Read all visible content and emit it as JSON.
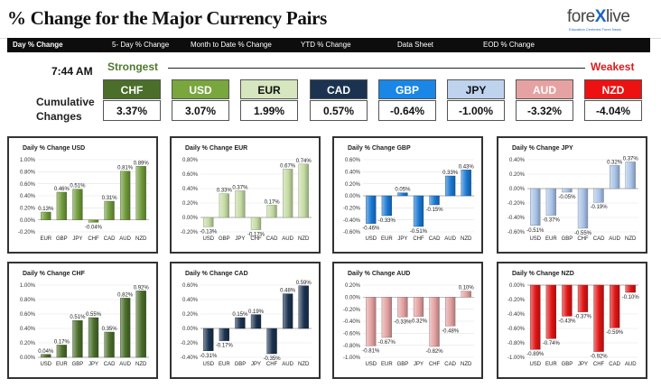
{
  "header": {
    "title": "% Change for the Major Currency Pairs",
    "logo_text_a": "fore",
    "logo_text_x": "X",
    "logo_text_b": "live",
    "logo_tagline": "Education Centered Forex News"
  },
  "tabs": [
    {
      "label": "Day % Change",
      "active": true
    },
    {
      "label": "5- Day % Change",
      "active": false
    },
    {
      "label": "Month to Date % Change",
      "active": false
    },
    {
      "label": "YTD % Change",
      "active": false
    },
    {
      "label": "Data Sheet",
      "active": false
    },
    {
      "label": "EOD % Change",
      "active": false
    }
  ],
  "ranking": {
    "time": "7:44 AM",
    "strongest_label": "Strongest",
    "weakest_label": "Weakest",
    "cumulative_line1": "Cumulative",
    "cumulative_line2": "Changes",
    "currencies": [
      {
        "code": "CHF",
        "value": "3.37%",
        "bg": "#4b6e2a",
        "fg": "#ffffff"
      },
      {
        "code": "USD",
        "value": "3.07%",
        "bg": "#79a63d",
        "fg": "#ffffff"
      },
      {
        "code": "EUR",
        "value": "1.99%",
        "bg": "#d6e6bf",
        "fg": "#111111"
      },
      {
        "code": "CAD",
        "value": "0.57%",
        "bg": "#1b3350",
        "fg": "#ffffff"
      },
      {
        "code": "GBP",
        "value": "-0.64%",
        "bg": "#1a86e6",
        "fg": "#ffffff"
      },
      {
        "code": "JPY",
        "value": "-1.00%",
        "bg": "#bfd2ee",
        "fg": "#111111"
      },
      {
        "code": "AUD",
        "value": "-3.32%",
        "bg": "#e6a2a2",
        "fg": "#ffffff"
      },
      {
        "code": "NZD",
        "value": "-4.04%",
        "bg": "#ee1111",
        "fg": "#ffffff"
      }
    ]
  },
  "chart_data": [
    {
      "type": "bar",
      "title": "Daily % Change USD",
      "color": "#6f9a3a",
      "categories": [
        "EUR",
        "GBP",
        "JPY",
        "CHF",
        "CAD",
        "AUD",
        "NZD"
      ],
      "values": [
        0.13,
        0.46,
        0.51,
        -0.04,
        0.31,
        0.81,
        0.89
      ],
      "labels": [
        "0.13%",
        "0.46%",
        "0.51%",
        "-0.04%",
        "0.31%",
        "0.81%",
        "0.89%"
      ],
      "ylim": [
        -0.2,
        1.0
      ],
      "yticks": [
        "-0.20%",
        "0.00%",
        "0.20%",
        "0.40%",
        "0.60%",
        "0.80%",
        "1.00%"
      ]
    },
    {
      "type": "bar",
      "title": "Daily % Change EUR",
      "color": "#c4dba3",
      "categories": [
        "USD",
        "GBP",
        "JPY",
        "CHF",
        "CAD",
        "AUD",
        "NZD"
      ],
      "values": [
        -0.13,
        0.33,
        0.37,
        -0.17,
        0.17,
        0.67,
        0.74
      ],
      "labels": [
        "-0.13%",
        "0.33%",
        "0.37%",
        "-0.17%",
        "0.17%",
        "0.67%",
        "0.74%"
      ],
      "ylim": [
        -0.2,
        0.8
      ],
      "yticks": [
        "-0.20%",
        "0.00%",
        "0.20%",
        "0.40%",
        "0.60%",
        "0.80%"
      ]
    },
    {
      "type": "bar",
      "title": "Daily % Change GBP",
      "color": "#1a78d2",
      "categories": [
        "USD",
        "EUR",
        "JPY",
        "CHF",
        "CAD",
        "AUD",
        "NZD"
      ],
      "values": [
        -0.46,
        -0.33,
        0.05,
        -0.51,
        -0.15,
        0.33,
        0.43
      ],
      "labels": [
        "-0.46%",
        "-0.33%",
        "0.05%",
        "-0.51%",
        "-0.15%",
        "0.33%",
        "0.43%"
      ],
      "ylim": [
        -0.6,
        0.6
      ],
      "yticks": [
        "-0.60%",
        "-0.40%",
        "-0.20%",
        "0.00%",
        "0.20%",
        "0.40%",
        "0.60%"
      ]
    },
    {
      "type": "bar",
      "title": "Daily % Change JPY",
      "color": "#a9c3e8",
      "categories": [
        "USD",
        "EUR",
        "GBP",
        "CHF",
        "CAD",
        "AUD",
        "NZD"
      ],
      "values": [
        -0.51,
        -0.37,
        -0.05,
        -0.55,
        -0.19,
        0.32,
        0.37
      ],
      "labels": [
        "-0.51%",
        "-0.37%",
        "-0.05%",
        "-0.55%",
        "-0.19%",
        "0.32%",
        "0.37%"
      ],
      "ylim": [
        -0.6,
        0.4
      ],
      "yticks": [
        "-0.60%",
        "-0.40%",
        "-0.20%",
        "0.00%",
        "0.20%",
        "0.40%"
      ]
    },
    {
      "type": "bar",
      "title": "Daily % Change CHF",
      "color": "#4a6e2a",
      "categories": [
        "USD",
        "EUR",
        "GBP",
        "JPY",
        "CAD",
        "AUD",
        "NZD"
      ],
      "values": [
        0.04,
        0.17,
        0.51,
        0.55,
        0.35,
        0.82,
        0.92
      ],
      "labels": [
        "0.04%",
        "0.17%",
        "0.51%",
        "0.55%",
        "0.35%",
        "0.82%",
        "0.92%"
      ],
      "ylim": [
        0,
        1.0
      ],
      "yticks": [
        "0.00%",
        "0.20%",
        "0.40%",
        "0.60%",
        "0.80%",
        "1.00%"
      ]
    },
    {
      "type": "bar",
      "title": "Daily % Change CAD",
      "color": "#1b3350",
      "categories": [
        "USD",
        "EUR",
        "GBP",
        "JPY",
        "CHF",
        "AUD",
        "NZD"
      ],
      "values": [
        -0.31,
        -0.17,
        0.15,
        0.19,
        -0.35,
        0.48,
        0.59
      ],
      "labels": [
        "-0.31%",
        "-0.17%",
        "0.15%",
        "0.19%",
        "-0.35%",
        "0.48%",
        "0.59%"
      ],
      "ylim": [
        -0.4,
        0.6
      ],
      "yticks": [
        "-0.40%",
        "-0.20%",
        "0.00%",
        "0.20%",
        "0.40%",
        "0.60%"
      ]
    },
    {
      "type": "bar",
      "title": "Daily % Change AUD",
      "color": "#e3a0a0",
      "categories": [
        "USD",
        "EUR",
        "GBP",
        "JPY",
        "CHF",
        "CAD",
        "NZD"
      ],
      "values": [
        -0.81,
        -0.67,
        -0.33,
        -0.32,
        -0.82,
        -0.48,
        0.1
      ],
      "labels": [
        "-0.81%",
        "-0.67%",
        "-0.33%",
        "-0.32%",
        "-0.82%",
        "-0.48%",
        "0.10%"
      ],
      "ylim": [
        -1.0,
        0.2
      ],
      "yticks": [
        "-1.00%",
        "-0.80%",
        "-0.60%",
        "-0.40%",
        "-0.20%",
        "0.00%",
        "0.20%"
      ]
    },
    {
      "type": "bar",
      "title": "Daily % Change NZD",
      "color": "#e01414",
      "categories": [
        "USD",
        "EUR",
        "GBP",
        "JPY",
        "CHF",
        "CAD",
        "AUD"
      ],
      "values": [
        -0.89,
        -0.74,
        -0.43,
        -0.37,
        -0.92,
        -0.59,
        -0.1
      ],
      "labels": [
        "-0.89%",
        "-0.74%",
        "-0.43%",
        "-0.37%",
        "-0.92%",
        "-0.59%",
        "-0.10%"
      ],
      "ylim": [
        -1.0,
        0.0
      ],
      "yticks": [
        "-1.00%",
        "-0.80%",
        "-0.60%",
        "-0.40%",
        "-0.20%",
        "0.00%"
      ]
    }
  ]
}
